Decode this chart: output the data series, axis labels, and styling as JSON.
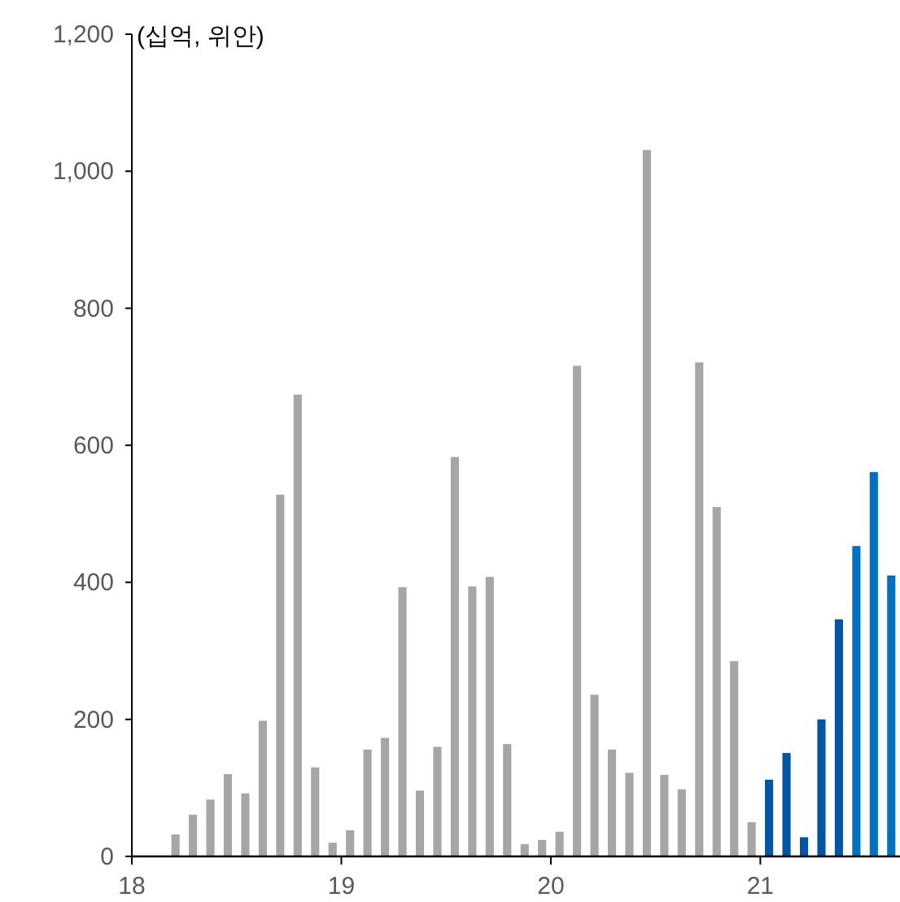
{
  "chart_data": {
    "type": "bar",
    "ylabel": "(십억, 위안)",
    "x": [
      "2018-03-16",
      "2018-04-16",
      "2018-05-16",
      "2018-06-16",
      "2018-07-16",
      "2018-08-16",
      "2018-09-16",
      "2018-10-16",
      "2018-11-16",
      "2018-12-16",
      "2019-01-16",
      "2019-02-16",
      "2019-03-16",
      "2019-04-16",
      "2019-05-16",
      "2019-06-16",
      "2019-07-16",
      "2019-08-16",
      "2019-09-16",
      "2019-10-16",
      "2019-11-16",
      "2019-12-16",
      "2020-01-16",
      "2020-02-16",
      "2020-03-16",
      "2020-04-16",
      "2020-05-16",
      "2020-06-16",
      "2020-07-16",
      "2020-08-16",
      "2020-09-16",
      "2020-10-16",
      "2020-11-16",
      "2020-12-16",
      "2021-01-16",
      "2021-02-16",
      "2021-03-16",
      "2021-04-16",
      "2021-05-16",
      "2021-06-16",
      "2021-07-16",
      "2021-08-16"
    ],
    "values": [
      32,
      61,
      83,
      120,
      92,
      198,
      528,
      674,
      130,
      20,
      38,
      156,
      173,
      393,
      96,
      160,
      583,
      394,
      408,
      164,
      18,
      24,
      36,
      716,
      236,
      156,
      122,
      1031,
      119,
      98,
      721,
      510,
      285,
      50,
      112,
      151,
      28,
      200,
      346,
      453,
      561,
      410
    ],
    "colors": [
      "#a6a6a6",
      "#a6a6a6",
      "#a6a6a6",
      "#a6a6a6",
      "#a6a6a6",
      "#a6a6a6",
      "#a6a6a6",
      "#a6a6a6",
      "#a6a6a6",
      "#a6a6a6",
      "#a6a6a6",
      "#a6a6a6",
      "#a6a6a6",
      "#a6a6a6",
      "#a6a6a6",
      "#a6a6a6",
      "#a6a6a6",
      "#a6a6a6",
      "#a6a6a6",
      "#a6a6a6",
      "#a6a6a6",
      "#a6a6a6",
      "#a6a6a6",
      "#a6a6a6",
      "#a6a6a6",
      "#a6a6a6",
      "#a6a6a6",
      "#a6a6a6",
      "#a6a6a6",
      "#a6a6a6",
      "#a6a6a6",
      "#a6a6a6",
      "#a6a6a6",
      "#a6a6a6",
      "#0055a5",
      "#0055a5",
      "#0055a5",
      "#0055a5",
      "#0055a5",
      "#0070c0",
      "#0070c0",
      "#0070c0"
    ],
    "xlim": [
      "2018-01",
      "2021-09"
    ],
    "xticks": [
      {
        "value": "2018-01",
        "label": "18"
      },
      {
        "value": "2019-01",
        "label": "19"
      },
      {
        "value": "2020-01",
        "label": "20"
      },
      {
        "value": "2021-01",
        "label": "21"
      }
    ],
    "ylim": [
      0,
      1200
    ],
    "yticks": [
      0,
      200,
      400,
      600,
      800,
      {
        "value": 1000,
        "label": "1,000"
      },
      {
        "value": 1200,
        "label": "1,200"
      }
    ],
    "grid": false
  }
}
